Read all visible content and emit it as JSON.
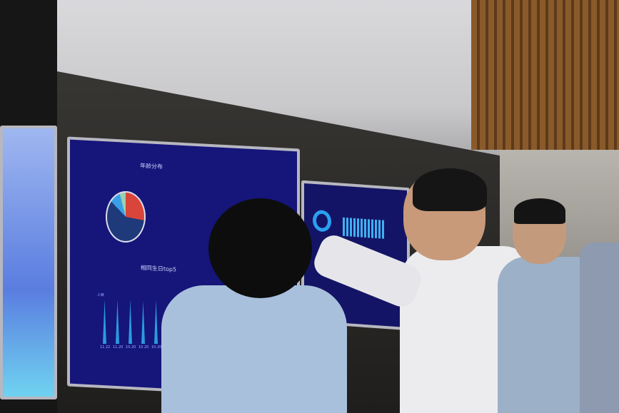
{
  "scene": "photo",
  "main_screen": {
    "top_panel_title": "年龄分布",
    "bottom_panel_title": "相同生日top5",
    "y_axis_label": "人数",
    "x_ticks": [
      "11.22",
      "11.20",
      "10.20",
      "10.20",
      "10.20"
    ]
  },
  "colors": {
    "screen_bg": "#15157a",
    "pie_red": "#d9453a",
    "pie_navy": "#1e3a7a",
    "pie_blue": "#39a0e8",
    "spike": "#2a9be0"
  }
}
